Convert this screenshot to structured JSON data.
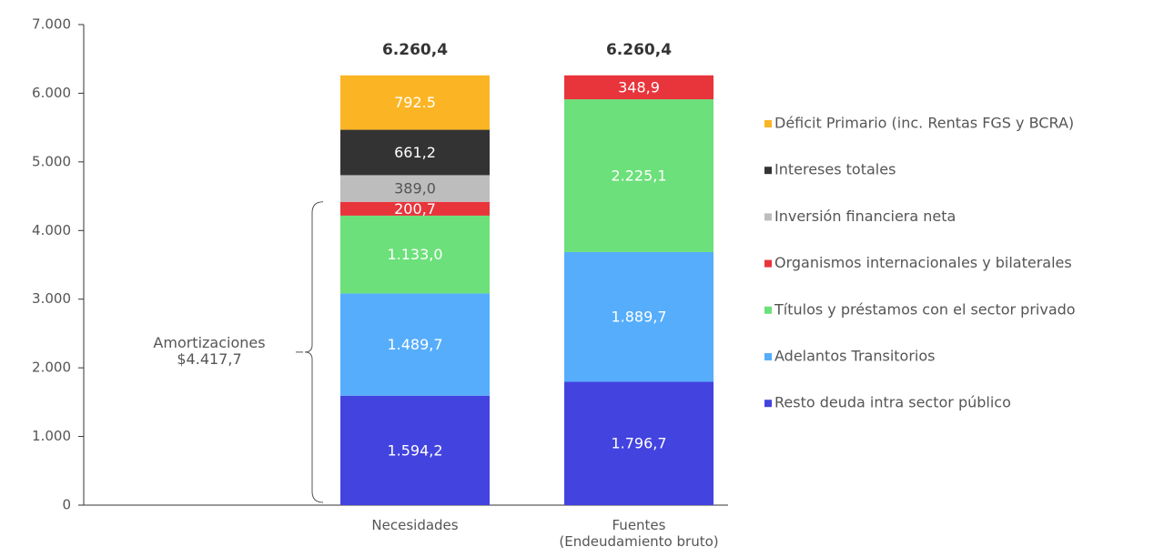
{
  "chart_data": {
    "type": "stacked_bar",
    "categories": [
      "Necesidades",
      "Fuentes\n(Endeudamiento bruto)"
    ],
    "series": [
      {
        "name": "Resto deuda intra sector público",
        "color": "#4343e0",
        "label_color": "#ffffff",
        "values": [
          1594.2,
          1796.7
        ],
        "value_labels": [
          "1.594,2",
          "1.796,7"
        ]
      },
      {
        "name": "Adelantos Transitorios",
        "color": "#56adfb",
        "label_color": "#ffffff",
        "values": [
          1489.7,
          1889.7
        ],
        "value_labels": [
          "1.489,7",
          "1.889,7"
        ]
      },
      {
        "name": "Títulos y préstamos con el sector privado",
        "color": "#6ce07a",
        "label_color": "#ffffff",
        "values": [
          1133.0,
          2225.1
        ],
        "value_labels": [
          "1.133,0",
          "2.225,1"
        ]
      },
      {
        "name": "Organismos internacionales y bilaterales",
        "color": "#e8343b",
        "label_color": "#ffffff",
        "values": [
          200.7,
          348.9
        ],
        "value_labels": [
          "200,7",
          "348,9"
        ]
      },
      {
        "name": "Inversión financiera neta",
        "color": "#bdbdbd",
        "label_color": "#555555",
        "values": [
          389.0,
          null
        ],
        "value_labels": [
          "389,0",
          null
        ]
      },
      {
        "name": "Intereses totales",
        "color": "#333333",
        "label_color": "#ffffff",
        "values": [
          661.2,
          null
        ],
        "value_labels": [
          "661,2",
          null
        ]
      },
      {
        "name": "Déficit Primario (inc. Rentas FGS y BCRA)",
        "color": "#fbb524",
        "label_color": "#ffffff",
        "values": [
          792.5,
          null
        ],
        "value_labels": [
          "792.5",
          null
        ]
      }
    ],
    "totals": [
      6260.4,
      6260.4
    ],
    "total_labels": [
      "6.260,4",
      "6.260,4"
    ],
    "annotation": {
      "text": "Amortizaciones\n$4.417,7",
      "value": 4417.7
    },
    "ylim": [
      0,
      7000
    ],
    "yticks": [
      0,
      {
        "value": 1000,
        "label": "1.000"
      },
      {
        "value": 2000,
        "label": "2.000"
      },
      {
        "value": 3000,
        "label": "3.000"
      },
      {
        "value": 4000,
        "label": "4.000"
      },
      {
        "value": 5000,
        "label": "5.000"
      },
      {
        "value": 6000,
        "label": "6.000"
      },
      {
        "value": 7000,
        "label": "7.000"
      }
    ],
    "legend": "right"
  }
}
